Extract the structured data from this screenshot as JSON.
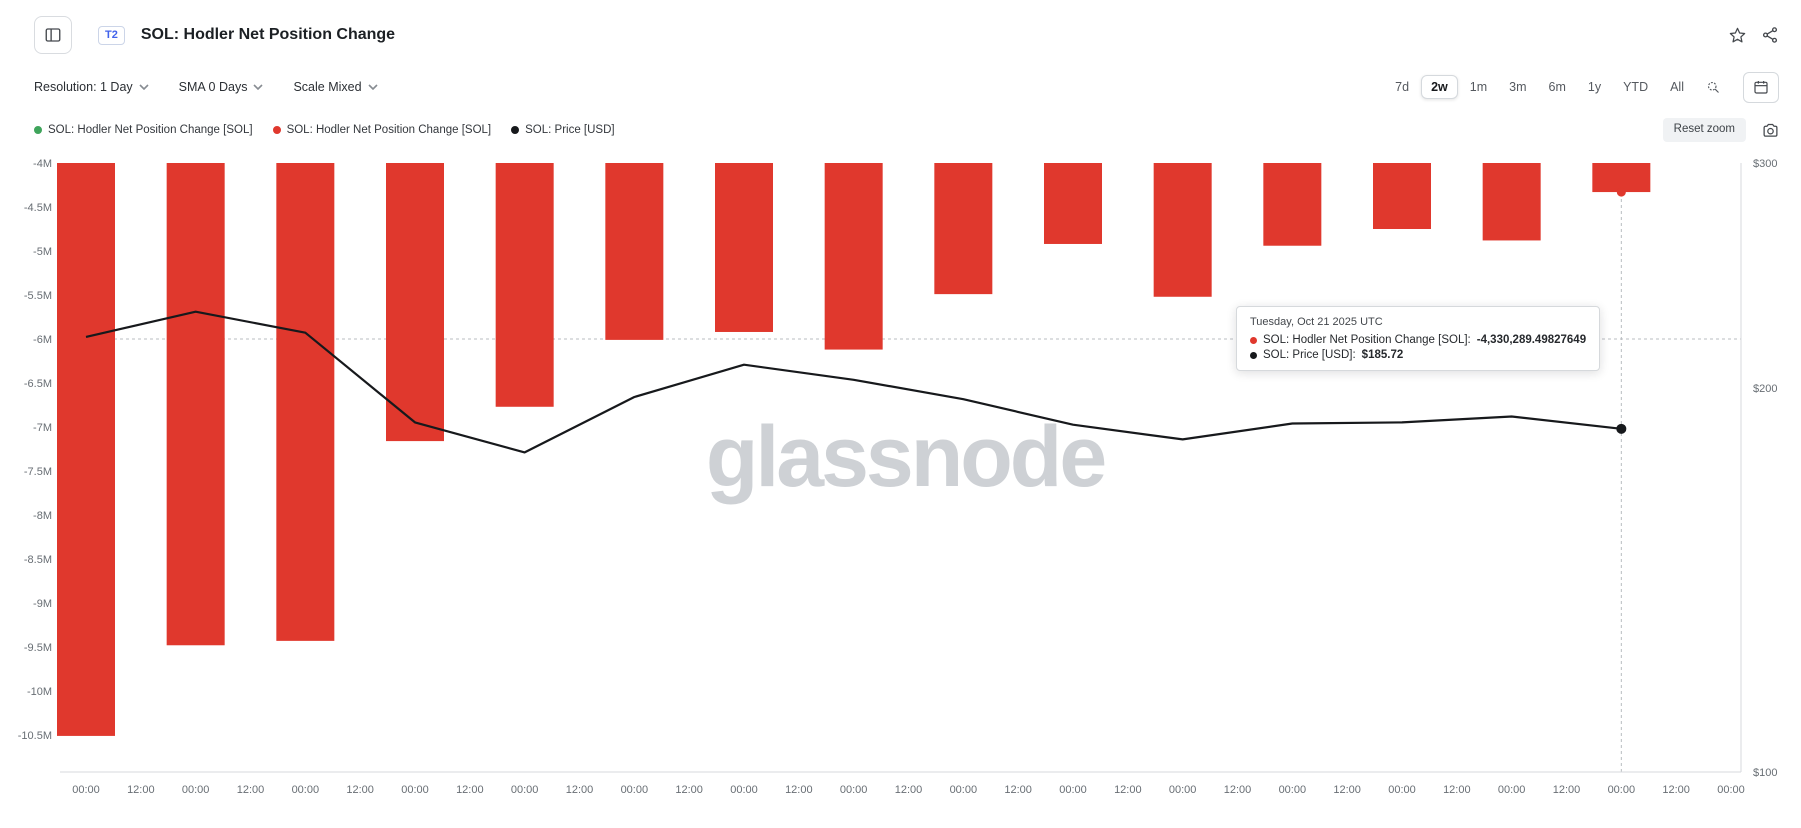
{
  "header": {
    "badge": "T2",
    "title": "SOL: Hodler Net Position Change"
  },
  "toolbar": {
    "resolution_label": "Resolution: 1 Day",
    "sma_label": "SMA 0 Days",
    "scale_label": "Scale Mixed",
    "ranges": [
      "7d",
      "2w",
      "1m",
      "3m",
      "6m",
      "1y",
      "YTD",
      "All"
    ],
    "active_range": "2w"
  },
  "legend": {
    "items": [
      {
        "label": "SOL: Hodler Net Position Change [SOL]",
        "color": "#3fa45b"
      },
      {
        "label": "SOL: Hodler Net Position Change [SOL]",
        "color": "#e0382d"
      },
      {
        "label": "SOL: Price [USD]",
        "color": "#17191c"
      }
    ],
    "reset_zoom_label": "Reset zoom"
  },
  "tooltip": {
    "title": "Tuesday, Oct 21 2025 UTC",
    "rows": [
      {
        "label": "SOL: Hodler Net Position Change [SOL]:",
        "value": "-4,330,289.49827649",
        "color": "#e0382d"
      },
      {
        "label": "SOL: Price [USD]:",
        "value": "$185.72",
        "color": "#17191c"
      }
    ]
  },
  "watermark": "glassnode",
  "chart_data": {
    "type": "mixed",
    "title": "SOL: Hodler Net Position Change",
    "x_tick_labels": [
      "00:00",
      "12:00",
      "00:00",
      "12:00",
      "00:00",
      "12:00",
      "00:00",
      "12:00",
      "00:00",
      "12:00",
      "00:00",
      "12:00",
      "00:00",
      "12:00",
      "00:00",
      "12:00",
      "00:00",
      "12:00",
      "00:00",
      "12:00",
      "00:00",
      "12:00",
      "00:00",
      "12:00",
      "00:00",
      "12:00",
      "00:00",
      "12:00",
      "00:00",
      "12:00",
      "00:00"
    ],
    "series": [
      {
        "name": "SOL: Hodler Net Position Change [SOL]",
        "type": "bar",
        "color": "#e0382d",
        "axis": "left",
        "values": [
          -10510000,
          -9480000,
          -9430000,
          -7160000,
          -6770000,
          -6010000,
          -5920000,
          -6120000,
          -5490000,
          -4920000,
          -5520000,
          -4940000,
          -4750000,
          -4880000,
          -4330289.49827649
        ]
      },
      {
        "name": "SOL: Price [USD]",
        "type": "line",
        "color": "#17191c",
        "axis": "right",
        "values": [
          219.2,
          229.4,
          220.9,
          187.9,
          178.0,
          196.7,
          208.5,
          202.9,
          195.9,
          187.1,
          182.2,
          187.5,
          187.9,
          189.9,
          185.72
        ]
      }
    ],
    "left_axis": {
      "tick_labels": [
        "-4M",
        "-4.5M",
        "-5M",
        "-5.5M",
        "-6M",
        "-6.5M",
        "-7M",
        "-7.5M",
        "-8M",
        "-8.5M",
        "-9M",
        "-9.5M",
        "-10M",
        "-10.5M"
      ],
      "tick_values": [
        -4000000,
        -4500000,
        -5000000,
        -5500000,
        -6000000,
        -6500000,
        -7000000,
        -7500000,
        -8000000,
        -8500000,
        -9000000,
        -9500000,
        -10000000,
        -10500000
      ],
      "range": [
        -10920000,
        -4000000
      ],
      "scale": "linear"
    },
    "right_axis": {
      "tick_labels": [
        "$300",
        "$200",
        "$100"
      ],
      "tick_values": [
        300,
        200,
        100
      ],
      "range": [
        100,
        300
      ],
      "scale": "log"
    },
    "crosshair": {
      "x_slot": 28,
      "y_value": -6000000
    },
    "marked_point_index": 14,
    "legend_position": "top-left",
    "grid": false
  }
}
